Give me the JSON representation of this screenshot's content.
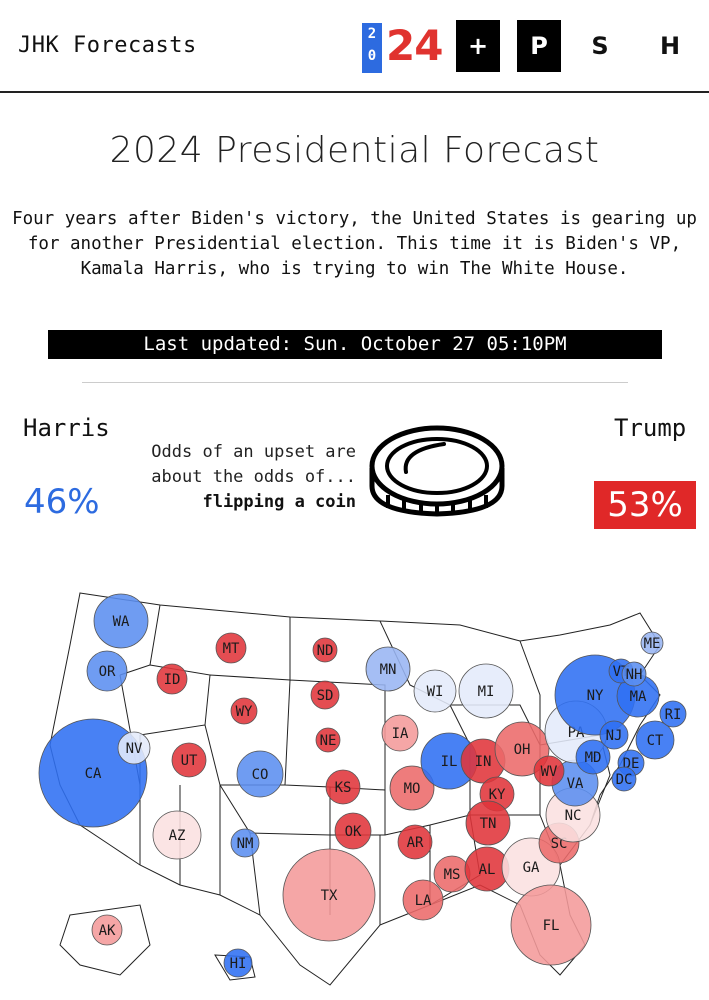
{
  "header": {
    "brand": "JHK Forecasts",
    "logo_year_top": "2",
    "logo_year_bottom": "0",
    "logo_big": "24",
    "nav": [
      {
        "label": "+",
        "style": "dark"
      },
      {
        "label": "P",
        "style": "dark"
      },
      {
        "label": "S",
        "style": "light"
      },
      {
        "label": "H",
        "style": "light"
      }
    ]
  },
  "main": {
    "title": "2024 Presidential Forecast",
    "intro": "Four years after Biden's victory, the United States is gearing up for another Presidential election. This time it is Biden's VP, Kamala Harris, who is trying to win The White House.",
    "last_updated": "Last updated: Sun. October 27 05:10PM"
  },
  "odds": {
    "harris_label": "Harris",
    "trump_label": "Trump",
    "harris_pct": "46%",
    "trump_pct": "53%",
    "upset_line1": "Odds of an upset are",
    "upset_line2": "about the odds of...",
    "upset_thing": "flipping a coin",
    "icon": "coin-icon"
  },
  "colors": {
    "dem": "#2d6be0",
    "rep": "#e02828",
    "safe_d": "#2f6ff2",
    "likely_d": "#5b8ef0",
    "lean_d": "#98b5f3",
    "tilt_d": "#e4ebfb",
    "tilt_r": "#fbe0e0",
    "lean_r": "#f49a9a",
    "likely_r": "#ec6a6a",
    "safe_r": "#e0343a"
  },
  "map": {
    "states": [
      {
        "abbr": "WA",
        "rating": "likely_d"
      },
      {
        "abbr": "OR",
        "rating": "likely_d"
      },
      {
        "abbr": "CA",
        "rating": "safe_d"
      },
      {
        "abbr": "NV",
        "rating": "tilt_d"
      },
      {
        "abbr": "ID",
        "rating": "safe_r"
      },
      {
        "abbr": "MT",
        "rating": "safe_r"
      },
      {
        "abbr": "WY",
        "rating": "safe_r"
      },
      {
        "abbr": "UT",
        "rating": "safe_r"
      },
      {
        "abbr": "AZ",
        "rating": "tilt_r"
      },
      {
        "abbr": "CO",
        "rating": "likely_d"
      },
      {
        "abbr": "NM",
        "rating": "likely_d"
      },
      {
        "abbr": "ND",
        "rating": "safe_r"
      },
      {
        "abbr": "SD",
        "rating": "safe_r"
      },
      {
        "abbr": "NE",
        "rating": "safe_r"
      },
      {
        "abbr": "KS",
        "rating": "safe_r"
      },
      {
        "abbr": "OK",
        "rating": "safe_r"
      },
      {
        "abbr": "TX",
        "rating": "lean_r"
      },
      {
        "abbr": "MN",
        "rating": "lean_d"
      },
      {
        "abbr": "IA",
        "rating": "lean_r"
      },
      {
        "abbr": "MO",
        "rating": "likely_r"
      },
      {
        "abbr": "AR",
        "rating": "safe_r"
      },
      {
        "abbr": "LA",
        "rating": "likely_r"
      },
      {
        "abbr": "WI",
        "rating": "tilt_d"
      },
      {
        "abbr": "MI",
        "rating": "tilt_d"
      },
      {
        "abbr": "IL",
        "rating": "safe_d"
      },
      {
        "abbr": "IN",
        "rating": "safe_r"
      },
      {
        "abbr": "OH",
        "rating": "likely_r"
      },
      {
        "abbr": "KY",
        "rating": "safe_r"
      },
      {
        "abbr": "TN",
        "rating": "safe_r"
      },
      {
        "abbr": "MS",
        "rating": "likely_r"
      },
      {
        "abbr": "AL",
        "rating": "safe_r"
      },
      {
        "abbr": "GA",
        "rating": "tilt_r"
      },
      {
        "abbr": "FL",
        "rating": "lean_r"
      },
      {
        "abbr": "SC",
        "rating": "likely_r"
      },
      {
        "abbr": "NC",
        "rating": "tilt_r"
      },
      {
        "abbr": "VA",
        "rating": "likely_d"
      },
      {
        "abbr": "WV",
        "rating": "safe_r"
      },
      {
        "abbr": "PA",
        "rating": "tilt_d"
      },
      {
        "abbr": "NY",
        "rating": "safe_d"
      },
      {
        "abbr": "MD",
        "rating": "safe_d"
      },
      {
        "abbr": "DE",
        "rating": "safe_d"
      },
      {
        "abbr": "DC",
        "rating": "safe_d"
      },
      {
        "abbr": "NJ",
        "rating": "safe_d"
      },
      {
        "abbr": "CT",
        "rating": "safe_d"
      },
      {
        "abbr": "RI",
        "rating": "safe_d"
      },
      {
        "abbr": "MA",
        "rating": "safe_d"
      },
      {
        "abbr": "VT",
        "rating": "safe_d"
      },
      {
        "abbr": "NH",
        "rating": "likely_d"
      },
      {
        "abbr": "ME",
        "rating": "lean_d"
      },
      {
        "abbr": "AK",
        "rating": "lean_r"
      },
      {
        "abbr": "HI",
        "rating": "safe_d"
      }
    ]
  }
}
